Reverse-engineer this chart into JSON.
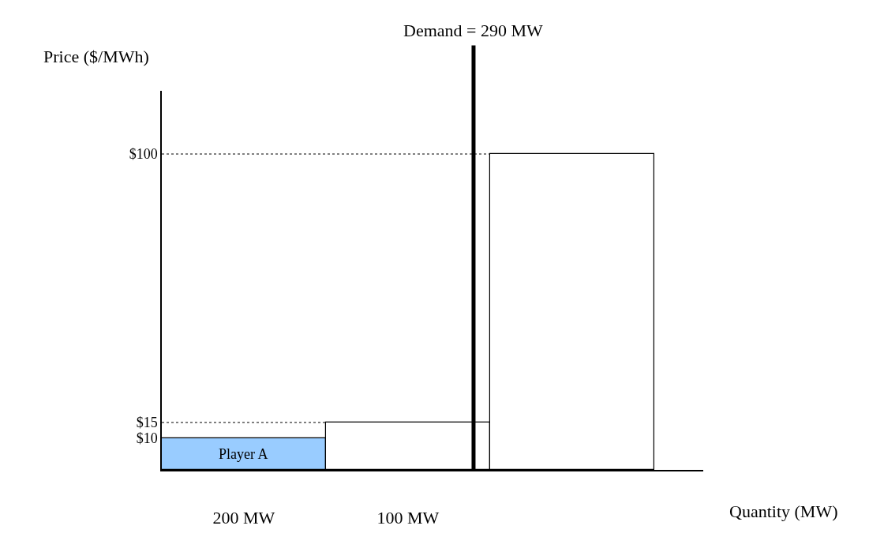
{
  "chart_data": {
    "type": "bar",
    "xlabel": "Quantity (MW)",
    "ylabel": "Price ($/MWh)",
    "categories": [
      "200 MW",
      "100 MW",
      null
    ],
    "values": [
      10,
      15,
      100
    ],
    "colors": [
      "#99ccff",
      "#ffffff",
      "#ffffff"
    ],
    "ylim": [
      0,
      120
    ],
    "yticks": [
      {
        "value": 10,
        "label": "$10"
      },
      {
        "value": 15,
        "label": "$15"
      },
      {
        "value": 100,
        "label": "$100"
      }
    ],
    "ref_lines": [
      {
        "axis": "y",
        "value": 15,
        "line_style": "dotted",
        "color": "#000000"
      },
      {
        "axis": "y",
        "value": 100,
        "line_style": "dotted",
        "color": "#000000"
      },
      {
        "axis": "x",
        "value": "100 MW",
        "label": "Demand = 290 MW",
        "color": "#000000",
        "line_style": "solid"
      }
    ],
    "annotations": [
      "Player A"
    ],
    "grid": false,
    "legend": false
  }
}
